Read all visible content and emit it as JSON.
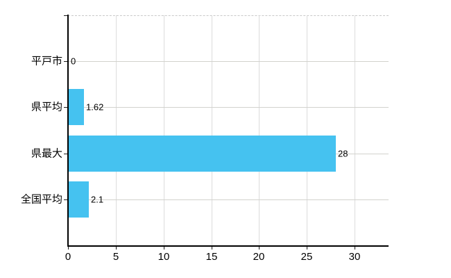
{
  "chart_data": {
    "type": "bar",
    "orientation": "horizontal",
    "title": "",
    "xlabel": "",
    "ylabel": "",
    "categories": [
      "平戸市",
      "県平均",
      "県最大",
      "全国平均"
    ],
    "values": [
      0,
      1.62,
      28,
      2.1
    ],
    "value_labels": [
      "0",
      "1.62",
      "28",
      "2.1"
    ],
    "x_ticks": [
      0,
      5,
      10,
      15,
      20,
      25,
      30
    ],
    "x_tick_labels": [
      "0",
      "5",
      "10",
      "15",
      "20",
      "25",
      "30"
    ],
    "xlim": [
      0,
      33.5
    ],
    "grid": "on",
    "legend": "none",
    "bar_color": "#45C2F0",
    "axis_color": "#000000",
    "gridline_color": "#dcdcdc",
    "category_gridline_color": "#d2d2cd",
    "background_color": "#ffffff",
    "text_color": "#000000"
  }
}
